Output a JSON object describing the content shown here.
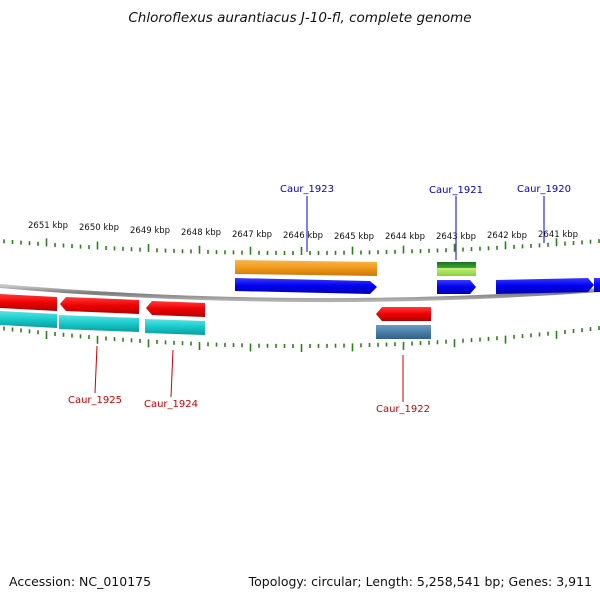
{
  "header": {
    "title": "Chloroflexus aurantiacus J-10-fl, complete genome"
  },
  "footer": {
    "accession": "Accession: NC_010175",
    "summary": "Topology: circular; Length: 5,258,541 bp; Genes: 3,911"
  },
  "ruler": {
    "labels": [
      "2651 kbp",
      "2650 kbp",
      "2649 kbp",
      "2648 kbp",
      "2647 kbp",
      "2646 kbp",
      "2645 kbp",
      "2644 kbp",
      "2643 kbp",
      "2642 kbp",
      "2641 kbp"
    ]
  },
  "genes": [
    {
      "id": "caur1920",
      "label": "Caur_1920",
      "strand": "forward",
      "color": "#0000ee",
      "label_color": "#0000cc"
    },
    {
      "id": "caur1921",
      "label": "Caur_1921",
      "strand": "forward",
      "color": "#0000ee",
      "label_color": "#0000cc"
    },
    {
      "id": "caur1922",
      "label": "Caur_1922",
      "strand": "reverse",
      "color": "#ee0000",
      "label_color": "#cc0000"
    },
    {
      "id": "caur1923",
      "label": "Caur_1923",
      "strand": "forward",
      "color": "#0000ee",
      "label_color": "#0000cc"
    },
    {
      "id": "caur1924",
      "label": "Caur_1924",
      "strand": "reverse",
      "color": "#ee0000",
      "label_color": "#cc0000"
    },
    {
      "id": "caur1925",
      "label": "Caur_1925",
      "strand": "reverse",
      "color": "#ee0000",
      "label_color": "#cc0000"
    }
  ],
  "colors": {
    "backbone": "#8a8a8a",
    "tick": "#2e7d1f",
    "forward_cds": "#0000ee",
    "reverse_cds": "#ee0000",
    "orange_feature": "#f29a1c",
    "green_feature": "#2c8a2a",
    "lightgreen_feature": "#9be04a",
    "cyan_feature": "#18c9c9",
    "steel_feature": "#4a7fa8"
  }
}
